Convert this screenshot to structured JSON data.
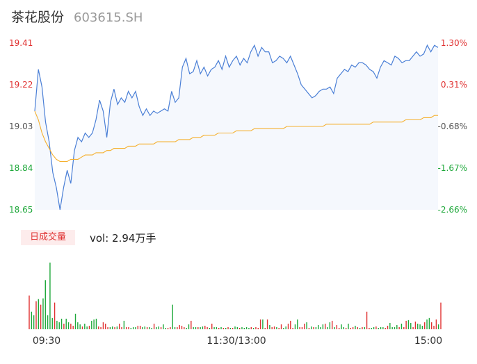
{
  "header": {
    "stock_name": "茶花股份",
    "stock_code": "603615.SH"
  },
  "volume_panel": {
    "badge_label": "日成交量",
    "vol_label": "vol: 2.94万手"
  },
  "colors": {
    "price_line": "#4a7fd6",
    "avg_line": "#f5b02e",
    "area_fill": "#f5f8fd",
    "up": "#e03030",
    "down": "#1ea83a",
    "axis_text": "#555555"
  },
  "chart_data": [
    {
      "type": "line",
      "title": "",
      "y_left_ticks": [
        "19.41",
        "19.22",
        "19.03",
        "18.84",
        "18.65"
      ],
      "y_right_ticks": [
        "1.30%",
        "0.31%",
        "-0.68%",
        "-1.67%",
        "-2.66%"
      ],
      "ylim": [
        18.65,
        19.41
      ],
      "x_ticks": [
        "09:30",
        "11:30/13:00",
        "15:00"
      ],
      "grid": false,
      "series": [
        {
          "values": [
            19.1,
            19.29,
            19.21,
            19.05,
            18.96,
            18.82,
            18.75,
            18.65,
            18.75,
            18.83,
            18.77,
            18.92,
            18.98,
            18.96,
            19.0,
            18.98,
            19.0,
            19.06,
            19.15,
            19.1,
            18.98,
            19.14,
            19.2,
            19.13,
            19.16,
            19.14,
            19.19,
            19.16,
            19.19,
            19.12,
            19.08,
            19.11,
            19.08,
            19.1,
            19.09,
            19.1,
            19.11,
            19.1,
            19.19,
            19.14,
            19.16,
            19.3,
            19.34,
            19.27,
            19.28,
            19.33,
            19.27,
            19.3,
            19.26,
            19.29,
            19.3,
            19.33,
            19.29,
            19.35,
            19.3,
            19.33,
            19.35,
            19.31,
            19.34,
            19.32,
            19.37,
            19.4,
            19.35,
            19.39,
            19.37,
            19.37,
            19.32,
            19.33,
            19.35,
            19.34,
            19.32,
            19.35,
            19.31,
            19.27,
            19.22,
            19.2,
            19.18,
            19.16,
            19.17,
            19.19,
            19.2,
            19.2,
            19.21,
            19.18,
            19.25,
            19.27,
            19.29,
            19.28,
            19.31,
            19.3,
            19.32,
            19.32,
            19.31,
            19.29,
            19.28,
            19.25,
            19.3,
            19.33,
            19.32,
            19.31,
            19.35,
            19.34,
            19.32,
            19.33,
            19.33,
            19.35,
            19.37,
            19.35,
            19.36,
            19.4,
            19.37,
            19.4,
            19.39
          ],
          "color_key": "price_line"
        },
        {
          "values": [
            19.1,
            19.06,
            19.0,
            18.96,
            18.93,
            18.9,
            18.88,
            18.87,
            18.87,
            18.87,
            18.88,
            18.88,
            18.88,
            18.89,
            18.9,
            18.9,
            18.9,
            18.91,
            18.91,
            18.91,
            18.92,
            18.92,
            18.93,
            18.93,
            18.93,
            18.93,
            18.94,
            18.94,
            18.94,
            18.95,
            18.95,
            18.95,
            18.95,
            18.95,
            18.96,
            18.96,
            18.96,
            18.96,
            18.96,
            18.96,
            18.97,
            18.97,
            18.97,
            18.97,
            18.98,
            18.98,
            18.98,
            18.99,
            18.99,
            18.99,
            18.99,
            19.0,
            19.0,
            19.0,
            19.0,
            19.0,
            19.01,
            19.01,
            19.01,
            19.01,
            19.01,
            19.02,
            19.02,
            19.02,
            19.02,
            19.02,
            19.02,
            19.02,
            19.02,
            19.02,
            19.03,
            19.03,
            19.03,
            19.03,
            19.03,
            19.03,
            19.03,
            19.03,
            19.03,
            19.03,
            19.03,
            19.04,
            19.04,
            19.04,
            19.04,
            19.04,
            19.04,
            19.04,
            19.04,
            19.04,
            19.04,
            19.04,
            19.04,
            19.04,
            19.05,
            19.05,
            19.05,
            19.05,
            19.05,
            19.05,
            19.05,
            19.05,
            19.05,
            19.06,
            19.06,
            19.06,
            19.06,
            19.06,
            19.07,
            19.07,
            19.07,
            19.08,
            19.08
          ],
          "color_key": "avg_line"
        }
      ]
    },
    {
      "type": "bar",
      "title": "",
      "series": [
        {
          "values": [
            48,
            25,
            20,
            40,
            43,
            35,
            44,
            70,
            20,
            95,
            16,
            38,
            12,
            10,
            15,
            8,
            15,
            10,
            8,
            5,
            22,
            10,
            7,
            4,
            8,
            4,
            5,
            12,
            14,
            15,
            4,
            3,
            10,
            8,
            3,
            3,
            4,
            3,
            4,
            8,
            3,
            12,
            3,
            3,
            2,
            3,
            3,
            5,
            5,
            3,
            4,
            3,
            3,
            2,
            8,
            3,
            4,
            3,
            7,
            2,
            2,
            3,
            35,
            3,
            3,
            6,
            5,
            3,
            2,
            7,
            12,
            3,
            3,
            3,
            3,
            4,
            5,
            3,
            2,
            8,
            3,
            3,
            2,
            3,
            2,
            2,
            3,
            2,
            2,
            4,
            3,
            2,
            3,
            2,
            3,
            2,
            3,
            2,
            3,
            2,
            14,
            14,
            2,
            14,
            6,
            3,
            4,
            3,
            2,
            7,
            2,
            4,
            8,
            12,
            2,
            7,
            14,
            3,
            3,
            8,
            10,
            2,
            4,
            3,
            3,
            6,
            3,
            7,
            8,
            3,
            10,
            12,
            3,
            6,
            2,
            7,
            3,
            2,
            8,
            2,
            3,
            5,
            3,
            2,
            3,
            3,
            25,
            2,
            2,
            3,
            4,
            2,
            3,
            3,
            2,
            5,
            9,
            3,
            3,
            6,
            3,
            8,
            3,
            12,
            13,
            9,
            3,
            11,
            8,
            7,
            5,
            10,
            14,
            16,
            10,
            5,
            14,
            7,
            38
          ],
          "directions": "uddududddddudddudduudddudduddduuuuudduduuduuddduuddudduddudduudduuuudduddudduududdududududdudddduduuuduuduuduudduuudduuudududdddudduduudduduudududuudduddduudddduduudduudddudduuudu"
        }
      ]
    }
  ]
}
